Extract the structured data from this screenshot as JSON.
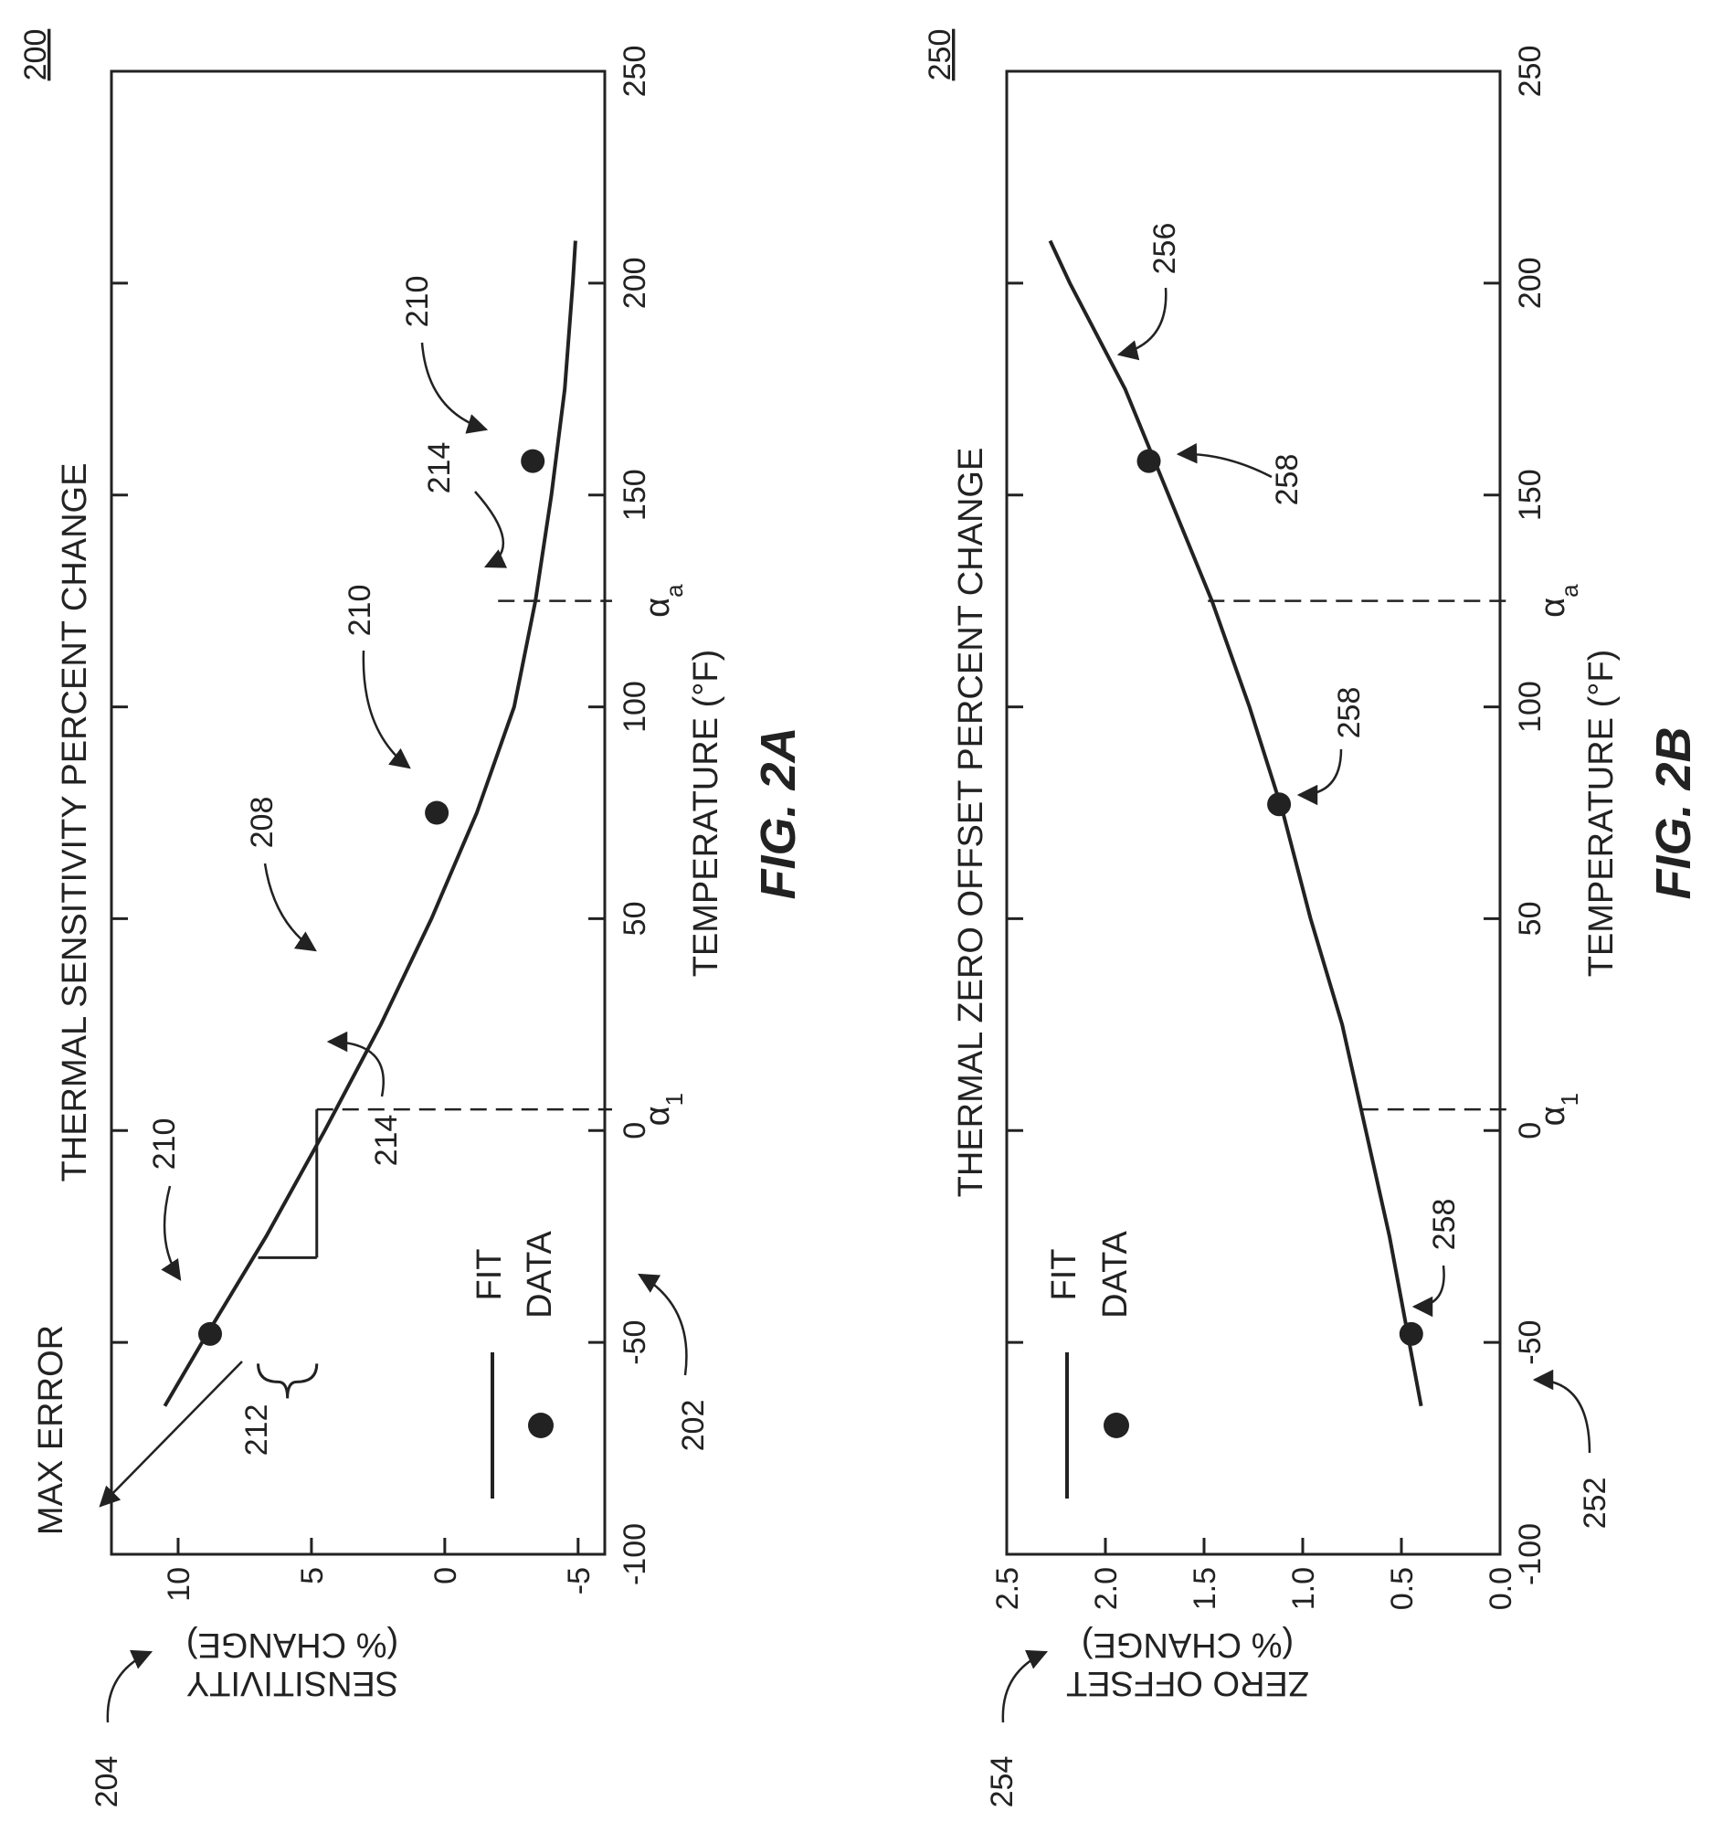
{
  "figure_refs": {
    "fig_2a": "200",
    "fig_2b": "250"
  },
  "colors": {
    "ink": "#222222",
    "background": "#ffffff"
  },
  "chart_data": [
    {
      "type": "line",
      "figure_label": "FIG. 2A",
      "title": "THERMAL SENSITIVITY PERCENT CHANGE",
      "xlabel": "TEMPERATURE (°F)",
      "ylabel_line1": "SENSITIVITY",
      "ylabel_line2": "(% CHANGE)",
      "xlim": [
        -100,
        250
      ],
      "ylim": [
        -6,
        12.5
      ],
      "x_ticks": [
        -100,
        -50,
        0,
        50,
        100,
        150,
        200,
        250
      ],
      "y_ticks": [
        10,
        5,
        0,
        -5
      ],
      "legend": {
        "position": "lower-left",
        "line_label": "FIT",
        "marker_label": "DATA"
      },
      "series": [
        {
          "name": "FIT",
          "kind": "line",
          "x": [
            -65,
            -50,
            -25,
            0,
            25,
            50,
            75,
            100,
            125,
            150,
            175,
            200,
            210
          ],
          "y": [
            10.5,
            9.1,
            6.7,
            4.5,
            2.4,
            0.5,
            -1.2,
            -2.6,
            -3.4,
            -4.0,
            -4.5,
            -4.8,
            -4.9
          ]
        },
        {
          "name": "DATA",
          "kind": "scatter",
          "x": [
            -48,
            75,
            158
          ],
          "y": [
            8.8,
            0.3,
            -3.3
          ]
        }
      ],
      "alpha_markers": [
        {
          "label": "α",
          "sub": "1",
          "x": 5,
          "y_top": 4.8
        },
        {
          "label": "α",
          "sub": "a",
          "x": 125,
          "y_top": -2.0
        }
      ],
      "max_error": {
        "label": "MAX ERROR",
        "bracket_ref": "212",
        "y_from": 7.0,
        "y_to": 4.8
      },
      "refs": [
        "202",
        "204",
        "208",
        "210",
        "210",
        "210",
        "212",
        "214",
        "214"
      ]
    },
    {
      "type": "line",
      "figure_label": "FIG. 2B",
      "title": "THERMAL ZERO OFFSET PERCENT CHANGE",
      "xlabel": "TEMPERATURE (°F)",
      "ylabel_line1": "ZERO OFFSET",
      "ylabel_line2": "(% CHANGE)",
      "xlim": [
        -100,
        250
      ],
      "ylim": [
        0,
        2.5
      ],
      "x_ticks": [
        -100,
        -50,
        0,
        50,
        100,
        150,
        200,
        250
      ],
      "y_ticks": [
        "0.0",
        "0.5",
        "1.0",
        "1.5",
        "2.0",
        "2.5"
      ],
      "legend": {
        "position": "lower-left",
        "line_label": "FIT",
        "marker_label": "DATA"
      },
      "series": [
        {
          "name": "FIT",
          "kind": "line",
          "x": [
            -65,
            -50,
            -25,
            0,
            25,
            50,
            75,
            100,
            125,
            150,
            175,
            200,
            210
          ],
          "y": [
            0.4,
            0.46,
            0.56,
            0.68,
            0.8,
            0.96,
            1.1,
            1.27,
            1.46,
            1.68,
            1.9,
            2.18,
            2.28
          ]
        },
        {
          "name": "DATA",
          "kind": "scatter",
          "x": [
            -48,
            77,
            158
          ],
          "y": [
            0.45,
            1.12,
            1.78
          ]
        }
      ],
      "alpha_markers": [
        {
          "label": "α",
          "sub": "1",
          "x": 5,
          "y_top": 0.7
        },
        {
          "label": "α",
          "sub": "a",
          "x": 125,
          "y_top": 1.48
        }
      ],
      "refs": [
        "252",
        "254",
        "256",
        "258",
        "258",
        "258"
      ]
    }
  ]
}
